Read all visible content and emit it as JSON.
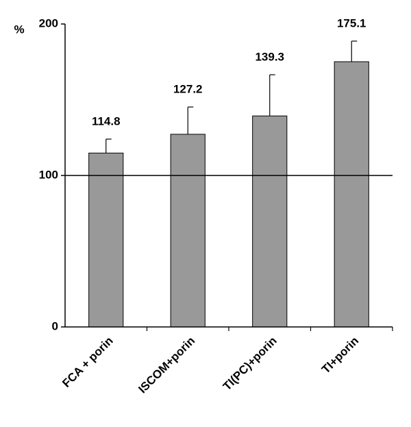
{
  "chart_data": {
    "type": "bar",
    "y_label": "%",
    "categories": [
      "FCA + porin",
      "ISCOM+porin",
      "TI(PC)+porin",
      "TI+porin"
    ],
    "values": [
      114.8,
      127.2,
      139.3,
      175.1
    ],
    "errors": [
      9.2,
      18,
      27.2,
      13.6
    ],
    "color": "#999999",
    "reference_line": 100,
    "ylim": [
      0,
      200
    ],
    "yticks": [
      0,
      100,
      200
    ]
  }
}
